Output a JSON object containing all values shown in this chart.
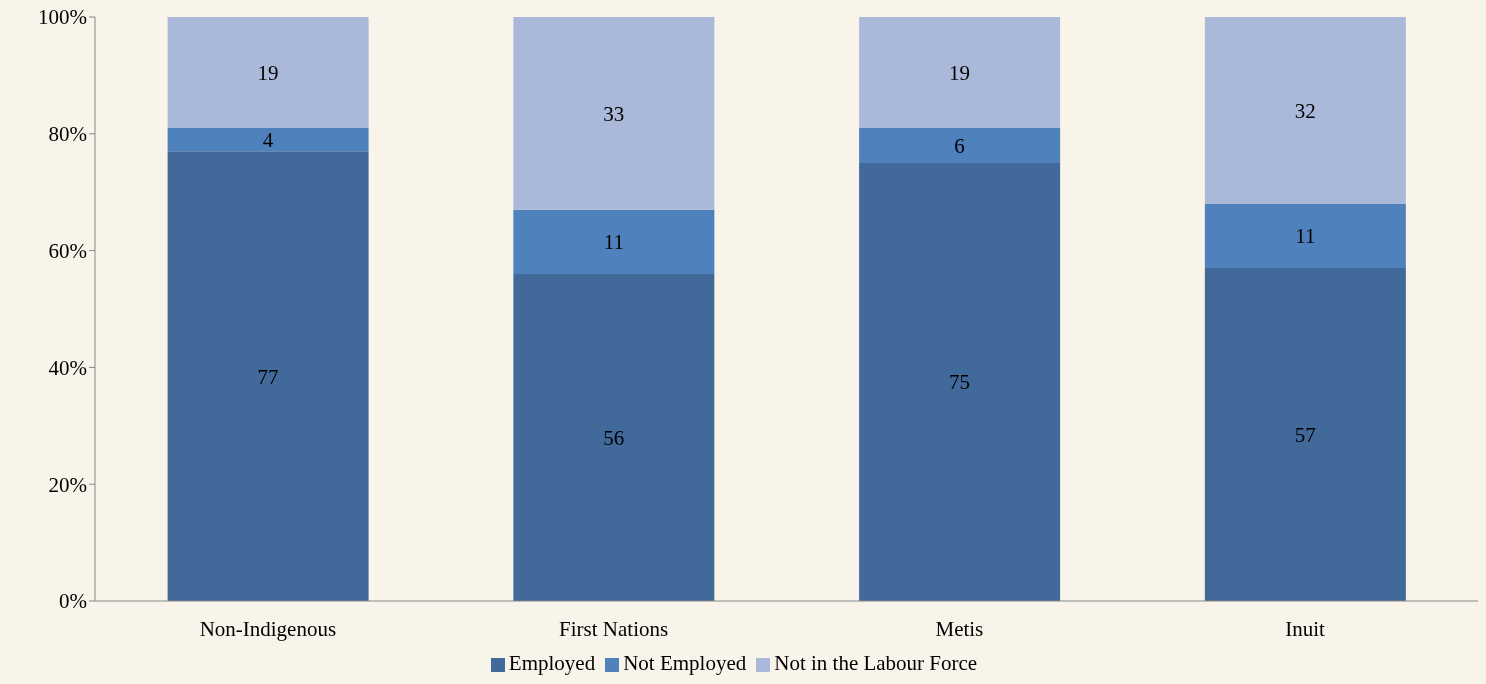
{
  "chart_data": {
    "type": "bar",
    "stacked": true,
    "categories": [
      "Non-Indigenous",
      "First Nations",
      "Metis",
      "Inuit"
    ],
    "series": [
      {
        "name": "Employed",
        "color": "#41699a",
        "values": [
          77,
          56,
          75,
          57
        ]
      },
      {
        "name": "Not Employed",
        "color": "#4f81bd",
        "values": [
          4,
          11,
          6,
          11
        ]
      },
      {
        "name": "Not in the Labour Force",
        "color": "#aab9d9",
        "values": [
          19,
          33,
          19,
          32
        ]
      }
    ],
    "ylim": [
      0,
      100
    ],
    "yticks": [
      {
        "value": 0,
        "label": "0%"
      },
      {
        "value": 20,
        "label": "20%"
      },
      {
        "value": 40,
        "label": "40%"
      },
      {
        "value": 60,
        "label": "60%"
      },
      {
        "value": 80,
        "label": "80%"
      },
      {
        "value": 100,
        "label": "100%"
      }
    ],
    "data_labels": true,
    "grid": false,
    "legend": "bottom"
  }
}
